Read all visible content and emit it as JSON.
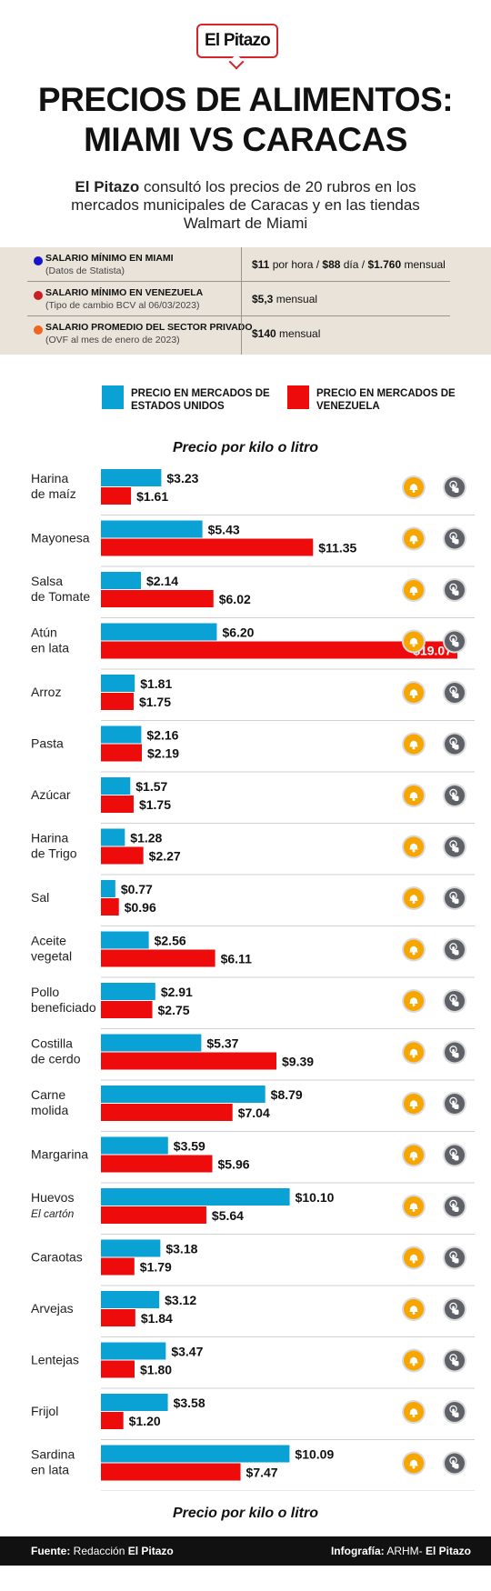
{
  "brand": {
    "logo_text": "El Pitazo",
    "accent_color": "#d6262d"
  },
  "title": {
    "line1": "PRECIOS DE ALIMENTOS:",
    "line2": "MIAMI VS CARACAS"
  },
  "subtitle": {
    "brand": "El Pitazo",
    "text": " consultó los precios de 20 rubros en los mercados municipales de Caracas y en las tiendas Walmart de Miami"
  },
  "wages": [
    {
      "dot_color": "#1a14c8",
      "label": "SALARIO MÍNIMO EN MIAMI",
      "note": "(Datos de Statista)",
      "parts": [
        {
          "b": "$11",
          "t": " por hora / "
        },
        {
          "b": "$88",
          "t": " día / "
        },
        {
          "b": "$1.760",
          "t": " mensual"
        }
      ]
    },
    {
      "dot_color": "#c62026",
      "label": "SALARIO MÍNIMO EN VENEZUELA",
      "note": "(Tipo de cambio BCV al 06/03/2023)",
      "parts": [
        {
          "b": "$5,3",
          "t": " mensual"
        }
      ]
    },
    {
      "dot_color": "#f0641e",
      "label": "SALARIO PROMEDIO DEL SECTOR PRIVADO",
      "note": "(OVF al mes de enero de 2023)",
      "parts": [
        {
          "b": "$140",
          "t": " mensual"
        }
      ]
    }
  ],
  "legend": {
    "us": {
      "label": "PRECIO EN MERCADOS DE ESTADOS UNIDOS",
      "color": "#0aa1d4"
    },
    "ve": {
      "label": "PRECIO EN MERCADOS DE VENEZUELA",
      "color": "#ee0b0b"
    }
  },
  "unit_label": "Precio por kilo o litro",
  "icons": {
    "first": "bell-icon",
    "second": "tap-hand-icon",
    "first_color": "#f7a600",
    "second_color": "#5e6168"
  },
  "chart_data": {
    "type": "bar",
    "orientation": "horizontal",
    "title": "Precio por kilo o litro",
    "categories": [
      [
        "Harina",
        "de maíz"
      ],
      [
        "Mayonesa"
      ],
      [
        "Salsa",
        "de Tomate"
      ],
      [
        "Atún",
        "en lata"
      ],
      [
        "Arroz"
      ],
      [
        "Pasta"
      ],
      [
        "Azúcar"
      ],
      [
        "Harina",
        "de Trigo"
      ],
      [
        "Sal"
      ],
      [
        "Aceite",
        "vegetal"
      ],
      [
        "Pollo",
        "beneficiado"
      ],
      [
        "Costilla",
        "de cerdo"
      ],
      [
        "Carne",
        "molida"
      ],
      [
        "Margarina"
      ],
      [
        "Huevos",
        "El cartón"
      ],
      [
        "Caraotas"
      ],
      [
        "Arvejas"
      ],
      [
        "Lentejas"
      ],
      [
        "Frijol"
      ],
      [
        "Sardina",
        "en lata"
      ]
    ],
    "series": [
      {
        "name": "PRECIO EN MERCADOS DE ESTADOS UNIDOS",
        "color": "#0aa1d4",
        "values": [
          3.23,
          5.43,
          2.14,
          6.2,
          1.81,
          2.16,
          1.57,
          1.28,
          0.77,
          2.56,
          2.91,
          5.37,
          8.79,
          3.59,
          10.1,
          3.18,
          3.12,
          3.47,
          3.58,
          10.09
        ],
        "labels": [
          "$3.23",
          "$5.43",
          "$2.14",
          "$6.20",
          "$1.81",
          "$2.16",
          "$1.57",
          "$1.28",
          "$0.77",
          "$2.56",
          "$2.91",
          "$5.37",
          "$8.79",
          "$3.59",
          "$10.10",
          "$3.18",
          "$3.12",
          "$3.47",
          "$3.58",
          "$10.09"
        ]
      },
      {
        "name": "PRECIO EN MERCADOS DE VENEZUELA",
        "color": "#ee0b0b",
        "values": [
          1.61,
          11.35,
          6.02,
          19.07,
          1.75,
          2.19,
          1.75,
          2.27,
          0.96,
          6.11,
          2.75,
          9.39,
          7.04,
          5.96,
          5.64,
          1.79,
          1.84,
          1.8,
          1.2,
          7.47
        ],
        "labels": [
          "$1.61",
          "$11.35",
          "$6.02",
          "$19.07",
          "$1.75",
          "$2.19",
          "$1.75",
          "$2.27",
          "$0.96",
          "$6.11",
          "$2.75",
          "$9.39",
          "$7.04",
          "$5.96",
          "$5.64",
          "$1.79",
          "$1.84",
          "$1.80",
          "$1.20",
          "$7.47"
        ]
      }
    ],
    "xlim": [
      0,
      19.07
    ],
    "grid": false
  },
  "footer": {
    "source_label": "Fuente:",
    "source_text": " Redacción ",
    "source_brand": "El Pitazo",
    "credit_label": "Infografía:",
    "credit_text": " ARHM- ",
    "credit_brand": "El Pitazo"
  }
}
